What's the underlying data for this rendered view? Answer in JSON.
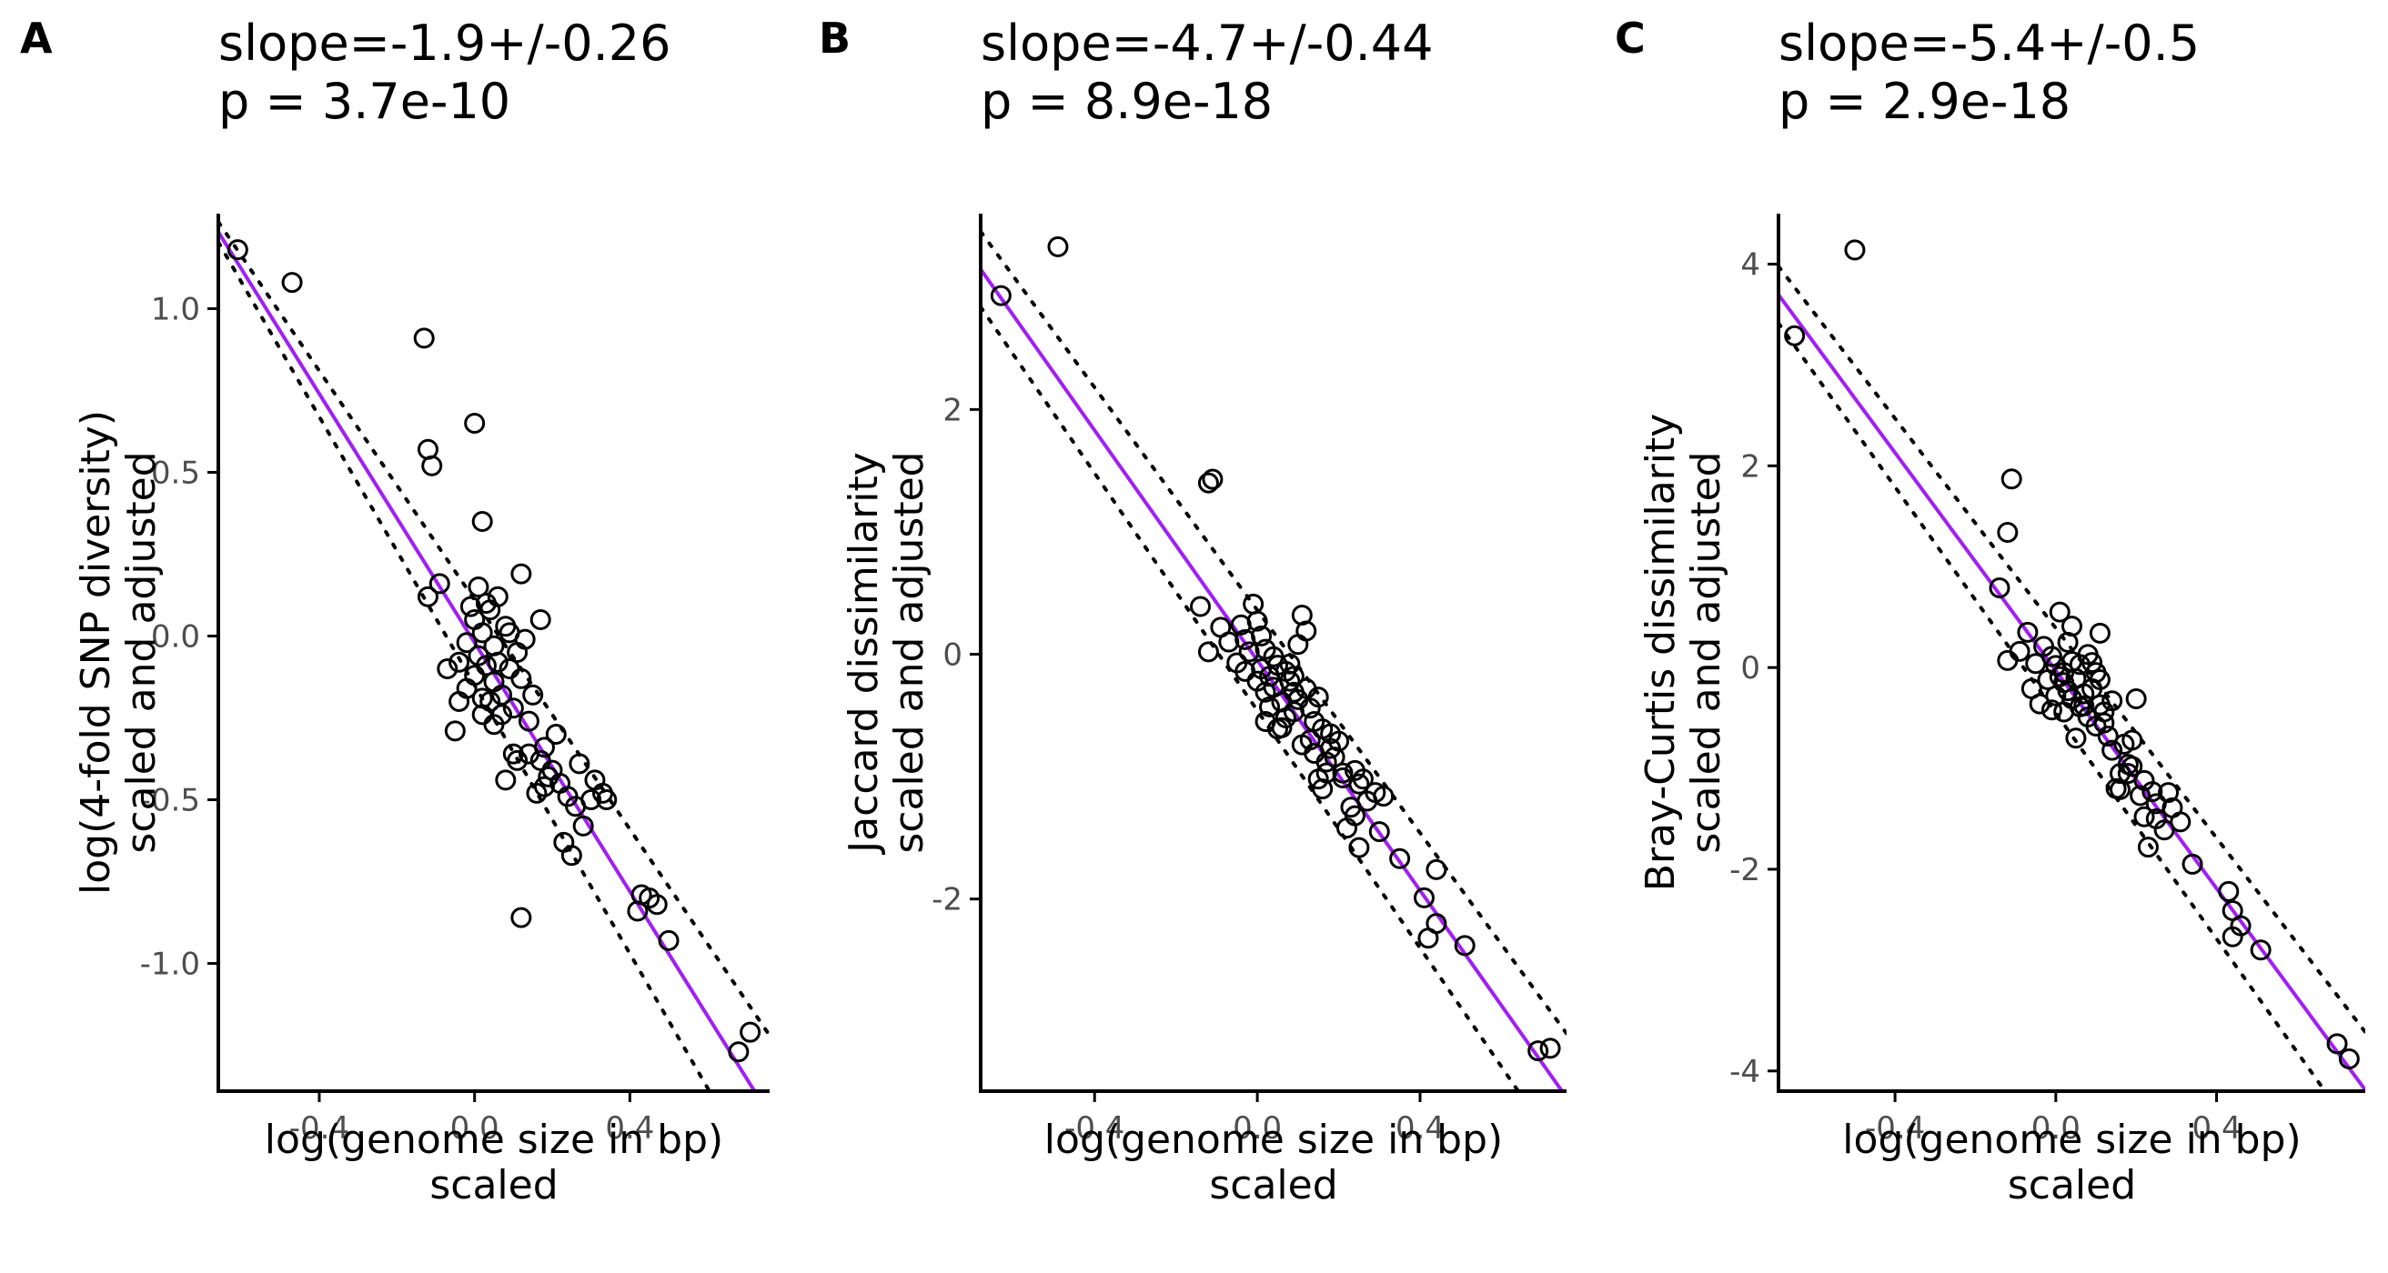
{
  "colors": {
    "fit_line": "#a020f0",
    "ci_line": "#000000",
    "points": "#000000",
    "axis": "#000000",
    "tick_text": "#4d4d4d"
  },
  "chart_data": [
    {
      "type": "scatter",
      "panel_label": "A",
      "title_line1": "slope=-1.9+/-0.26",
      "title_line2": "p = 3.7e-10",
      "xlabel_line1": "log(genome size in bp)",
      "xlabel_line2": "scaled",
      "ylabel_line1": "log(4-fold SNP diversity)",
      "ylabel_line2": "scaled and adjusted",
      "xlim": [
        -0.66,
        0.76
      ],
      "ylim": [
        -1.39,
        1.29
      ],
      "xticks": [
        -0.4,
        0.0,
        0.4
      ],
      "xtick_labels": [
        "-0.4",
        "0.0",
        "0.4"
      ],
      "yticks": [
        -1.0,
        -0.5,
        0.0,
        0.5,
        1.0
      ],
      "ytick_labels": [
        "-1.0",
        "-0.5",
        "0.0",
        "0.5",
        "1.0"
      ],
      "fit": {
        "slope": -1.9,
        "intercept": -0.02
      },
      "ci_upper": {
        "slope": -1.75,
        "intercept": 0.11
      },
      "ci_lower": {
        "slope": -2.05,
        "intercept": -0.15
      },
      "points": [
        [
          -0.61,
          1.18
        ],
        [
          -0.47,
          1.08
        ],
        [
          -0.13,
          0.91
        ],
        [
          -0.12,
          0.57
        ],
        [
          -0.11,
          0.52
        ],
        [
          0.0,
          0.65
        ],
        [
          0.02,
          0.35
        ],
        [
          -0.12,
          0.12
        ],
        [
          -0.09,
          0.16
        ],
        [
          -0.07,
          -0.1
        ],
        [
          -0.05,
          -0.29
        ],
        [
          -0.04,
          -0.2
        ],
        [
          -0.04,
          -0.08
        ],
        [
          -0.02,
          -0.16
        ],
        [
          -0.02,
          -0.02
        ],
        [
          -0.01,
          0.09
        ],
        [
          0.0,
          0.05
        ],
        [
          0.0,
          -0.12
        ],
        [
          0.01,
          0.15
        ],
        [
          0.01,
          -0.06
        ],
        [
          0.02,
          -0.19
        ],
        [
          0.02,
          0.01
        ],
        [
          0.03,
          0.1
        ],
        [
          0.03,
          -0.09
        ],
        [
          0.04,
          -0.2
        ],
        [
          0.05,
          -0.03
        ],
        [
          0.05,
          -0.14
        ],
        [
          0.06,
          -0.08
        ],
        [
          0.07,
          -0.18
        ],
        [
          0.08,
          0.03
        ],
        [
          0.09,
          -0.1
        ],
        [
          0.09,
          0.01
        ],
        [
          0.1,
          -0.22
        ],
        [
          0.11,
          -0.05
        ],
        [
          0.12,
          0.19
        ],
        [
          0.12,
          -0.13
        ],
        [
          0.13,
          -0.01
        ],
        [
          0.14,
          -0.26
        ],
        [
          0.15,
          -0.18
        ],
        [
          0.16,
          -0.48
        ],
        [
          0.17,
          -0.38
        ],
        [
          0.17,
          0.05
        ],
        [
          0.18,
          -0.34
        ],
        [
          0.19,
          -0.43
        ],
        [
          0.2,
          -0.41
        ],
        [
          0.21,
          -0.3
        ],
        [
          0.22,
          -0.45
        ],
        [
          0.23,
          -0.63
        ],
        [
          0.24,
          -0.49
        ],
        [
          0.25,
          -0.67
        ],
        [
          0.26,
          -0.52
        ],
        [
          0.27,
          -0.39
        ],
        [
          0.28,
          -0.58
        ],
        [
          0.3,
          -0.5
        ],
        [
          0.31,
          -0.44
        ],
        [
          0.33,
          -0.48
        ],
        [
          0.34,
          -0.5
        ],
        [
          0.08,
          -0.44
        ],
        [
          0.1,
          -0.36
        ],
        [
          0.12,
          -0.86
        ],
        [
          0.42,
          -0.84
        ],
        [
          0.43,
          -0.79
        ],
        [
          0.45,
          -0.8
        ],
        [
          0.47,
          -0.82
        ],
        [
          0.5,
          -0.93
        ],
        [
          0.68,
          -1.27
        ],
        [
          0.71,
          -1.21
        ],
        [
          0.05,
          -0.27
        ],
        [
          0.07,
          -0.24
        ],
        [
          0.14,
          -0.36
        ],
        [
          0.11,
          -0.38
        ],
        [
          0.18,
          -0.46
        ],
        [
          0.04,
          0.08
        ],
        [
          0.06,
          0.12
        ],
        [
          0.02,
          -0.24
        ]
      ]
    },
    {
      "type": "scatter",
      "panel_label": "B",
      "title_line1": "slope=-4.7+/-0.44",
      "title_line2": "p = 8.9e-18",
      "xlabel_line1": "log(genome size in bp)",
      "xlabel_line2": "scaled",
      "ylabel_line1": "Jaccard dissimilarity",
      "ylabel_line2": "scaled and adjusted",
      "xlim": [
        -0.68,
        0.76
      ],
      "ylim": [
        -3.57,
        3.6
      ],
      "xticks": [
        -0.4,
        0.0,
        0.4
      ],
      "xtick_labels": [
        "-0.4",
        "0.0",
        "0.4"
      ],
      "yticks": [
        -2,
        0,
        2
      ],
      "ytick_labels": [
        "-2",
        "0",
        "2"
      ],
      "fit": {
        "slope": -4.7,
        "intercept": -0.05
      },
      "ci_upper": {
        "slope": -4.55,
        "intercept": 0.36
      },
      "ci_lower": {
        "slope": -4.85,
        "intercept": -0.46
      },
      "points": [
        [
          -0.63,
          2.93
        ],
        [
          -0.49,
          3.33
        ],
        [
          -0.12,
          1.4
        ],
        [
          -0.11,
          1.43
        ],
        [
          -0.14,
          0.39
        ],
        [
          -0.12,
          0.02
        ],
        [
          -0.09,
          0.22
        ],
        [
          -0.07,
          0.1
        ],
        [
          -0.05,
          -0.07
        ],
        [
          -0.04,
          0.24
        ],
        [
          -0.03,
          -0.14
        ],
        [
          -0.02,
          0.02
        ],
        [
          -0.01,
          0.41
        ],
        [
          0.0,
          0.27
        ],
        [
          0.0,
          -0.22
        ],
        [
          0.01,
          -0.12
        ],
        [
          0.02,
          -0.31
        ],
        [
          0.02,
          0.04
        ],
        [
          0.03,
          -0.43
        ],
        [
          0.03,
          -0.18
        ],
        [
          0.04,
          -0.27
        ],
        [
          0.05,
          -0.09
        ],
        [
          0.05,
          -0.61
        ],
        [
          0.06,
          -0.39
        ],
        [
          0.07,
          -0.14
        ],
        [
          0.07,
          -0.52
        ],
        [
          0.08,
          -0.22
        ],
        [
          0.09,
          -0.47
        ],
        [
          0.09,
          -0.31
        ],
        [
          0.1,
          0.08
        ],
        [
          0.1,
          -0.37
        ],
        [
          0.11,
          -0.74
        ],
        [
          0.11,
          0.32
        ],
        [
          0.12,
          -0.28
        ],
        [
          0.12,
          0.19
        ],
        [
          0.13,
          -0.44
        ],
        [
          0.14,
          -0.55
        ],
        [
          0.15,
          -0.35
        ],
        [
          0.16,
          -0.61
        ],
        [
          0.16,
          -1.1
        ],
        [
          0.17,
          -0.97
        ],
        [
          0.18,
          -0.77
        ],
        [
          0.18,
          -0.65
        ],
        [
          0.19,
          -0.84
        ],
        [
          0.2,
          -0.71
        ],
        [
          0.21,
          -1.01
        ],
        [
          0.22,
          -1.42
        ],
        [
          0.23,
          -1.25
        ],
        [
          0.24,
          -0.95
        ],
        [
          0.25,
          -1.06
        ],
        [
          0.25,
          -1.58
        ],
        [
          0.26,
          -1.02
        ],
        [
          0.27,
          -1.2
        ],
        [
          0.29,
          -1.13
        ],
        [
          0.3,
          -1.45
        ],
        [
          0.31,
          -1.16
        ],
        [
          0.35,
          -1.67
        ],
        [
          0.41,
          -1.99
        ],
        [
          0.42,
          -2.32
        ],
        [
          0.44,
          -1.76
        ],
        [
          0.44,
          -2.2
        ],
        [
          0.51,
          -2.38
        ],
        [
          0.69,
          -3.24
        ],
        [
          0.72,
          -3.22
        ],
        [
          0.04,
          -0.02
        ],
        [
          0.06,
          -0.6
        ],
        [
          0.08,
          -0.08
        ],
        [
          0.13,
          -0.7
        ],
        [
          0.17,
          -0.88
        ],
        [
          0.15,
          -1.02
        ],
        [
          0.21,
          -0.97
        ],
        [
          0.02,
          -0.55
        ],
        [
          -0.03,
          0.12
        ],
        [
          0.01,
          0.15
        ],
        [
          0.09,
          -0.18
        ],
        [
          0.14,
          -0.81
        ],
        [
          0.24,
          -1.32
        ]
      ]
    },
    {
      "type": "scatter",
      "panel_label": "C",
      "title_line1": "slope=-5.4+/-0.5",
      "title_line2": "p = 2.9e-18",
      "xlabel_line1": "log(genome size in bp)",
      "xlabel_line2": "scaled",
      "ylabel_line1": "Bray-Curtis dissimilarity",
      "ylabel_line2": "scaled and adjusted",
      "xlim": [
        -0.69,
        0.77
      ],
      "ylim": [
        -4.2,
        4.5
      ],
      "xticks": [
        -0.4,
        0.0,
        0.4
      ],
      "xtick_labels": [
        "-0.4",
        "0.0",
        "0.4"
      ],
      "yticks": [
        -4,
        -2,
        0,
        2,
        4
      ],
      "ytick_labels": [
        "-4",
        "-2",
        "0",
        "2",
        "4"
      ],
      "fit": {
        "slope": -5.4,
        "intercept": -0.03
      },
      "ci_upper": {
        "slope": -5.2,
        "intercept": 0.39
      },
      "ci_lower": {
        "slope": -5.6,
        "intercept": -0.45
      },
      "points": [
        [
          -0.65,
          3.29
        ],
        [
          -0.5,
          4.14
        ],
        [
          -0.11,
          1.87
        ],
        [
          -0.12,
          1.34
        ],
        [
          -0.14,
          0.79
        ],
        [
          -0.12,
          0.07
        ],
        [
          -0.09,
          0.16
        ],
        [
          -0.07,
          0.35
        ],
        [
          -0.06,
          -0.21
        ],
        [
          -0.05,
          0.04
        ],
        [
          -0.04,
          -0.36
        ],
        [
          -0.03,
          0.21
        ],
        [
          -0.02,
          -0.12
        ],
        [
          -0.01,
          0.11
        ],
        [
          0.0,
          -0.28
        ],
        [
          0.0,
          0.02
        ],
        [
          0.01,
          0.55
        ],
        [
          0.01,
          -0.09
        ],
        [
          0.02,
          -0.44
        ],
        [
          0.02,
          -0.05
        ],
        [
          0.03,
          0.25
        ],
        [
          0.03,
          -0.23
        ],
        [
          0.04,
          -0.31
        ],
        [
          0.04,
          0.06
        ],
        [
          0.05,
          -0.11
        ],
        [
          0.05,
          -0.7
        ],
        [
          0.06,
          -0.39
        ],
        [
          0.06,
          0.03
        ],
        [
          0.07,
          -0.26
        ],
        [
          0.08,
          0.13
        ],
        [
          0.08,
          -0.49
        ],
        [
          0.09,
          -0.21
        ],
        [
          0.1,
          -0.05
        ],
        [
          0.1,
          -0.58
        ],
        [
          0.11,
          0.34
        ],
        [
          0.11,
          -0.37
        ],
        [
          0.12,
          -0.44
        ],
        [
          0.13,
          -0.68
        ],
        [
          0.14,
          -0.82
        ],
        [
          0.14,
          -0.33
        ],
        [
          0.15,
          -1.2
        ],
        [
          0.16,
          -1.05
        ],
        [
          0.17,
          -0.76
        ],
        [
          0.18,
          -0.96
        ],
        [
          0.19,
          -0.72
        ],
        [
          0.2,
          -0.31
        ],
        [
          0.21,
          -1.27
        ],
        [
          0.22,
          -1.48
        ],
        [
          0.22,
          -1.12
        ],
        [
          0.23,
          -1.78
        ],
        [
          0.24,
          -1.23
        ],
        [
          0.25,
          -1.35
        ],
        [
          0.27,
          -1.61
        ],
        [
          0.28,
          -1.24
        ],
        [
          0.29,
          -1.39
        ],
        [
          0.31,
          -1.53
        ],
        [
          0.34,
          -1.95
        ],
        [
          0.43,
          -2.22
        ],
        [
          0.44,
          -2.41
        ],
        [
          0.44,
          -2.67
        ],
        [
          0.46,
          -2.56
        ],
        [
          0.51,
          -2.8
        ],
        [
          0.7,
          -3.73
        ],
        [
          0.73,
          -3.88
        ],
        [
          0.02,
          -0.15
        ],
        [
          0.07,
          -0.38
        ],
        [
          0.12,
          -0.55
        ],
        [
          0.16,
          -1.21
        ],
        [
          0.19,
          -0.98
        ],
        [
          0.25,
          -1.5
        ],
        [
          0.09,
          0.05
        ],
        [
          -0.01,
          -0.42
        ],
        [
          0.04,
          0.41
        ],
        [
          0.11,
          -0.12
        ],
        [
          0.18,
          -1.05
        ]
      ]
    }
  ]
}
